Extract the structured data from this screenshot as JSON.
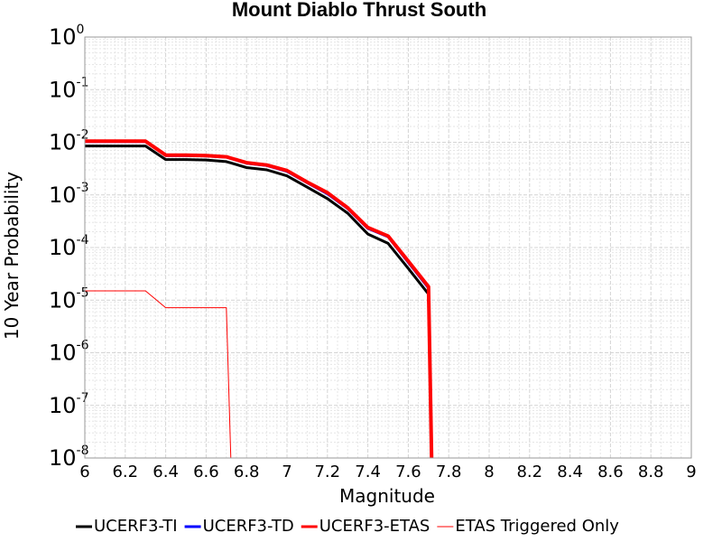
{
  "chart_data": {
    "type": "line",
    "title": "Mount Diablo Thrust South",
    "xlabel": "Magnitude",
    "ylabel": "10 Year Probability",
    "xlim": [
      6,
      9
    ],
    "ylim": [
      1e-08,
      1
    ],
    "yscale": "log",
    "grid": true,
    "legend_position": "bottom",
    "x_ticks": [
      "6",
      "6.2",
      "6.4",
      "6.6",
      "6.8",
      "7",
      "7.2",
      "7.4",
      "7.6",
      "7.8",
      "8",
      "8.2",
      "8.4",
      "8.6",
      "8.8",
      "9"
    ],
    "y_ticks": [
      {
        "base": "10",
        "exp": "0"
      },
      {
        "base": "10",
        "exp": "-1"
      },
      {
        "base": "10",
        "exp": "-2"
      },
      {
        "base": "10",
        "exp": "-3"
      },
      {
        "base": "10",
        "exp": "-4"
      },
      {
        "base": "10",
        "exp": "-5"
      },
      {
        "base": "10",
        "exp": "-6"
      },
      {
        "base": "10",
        "exp": "-7"
      },
      {
        "base": "10",
        "exp": "-8"
      }
    ],
    "series": [
      {
        "name": "UCERF3-TI",
        "color": "#000000",
        "width": 3,
        "x": [
          6.0,
          6.3,
          6.4,
          6.5,
          6.6,
          6.7,
          6.8,
          6.9,
          7.0,
          7.1,
          7.2,
          7.3,
          7.4,
          7.5,
          7.6,
          7.7,
          7.72
        ],
        "y": [
          0.0085,
          0.0085,
          0.0047,
          0.0047,
          0.0046,
          0.0043,
          0.0033,
          0.003,
          0.0023,
          0.0014,
          0.00085,
          0.00045,
          0.00018,
          0.00012,
          4e-05,
          1.3e-05,
          1e-09
        ]
      },
      {
        "name": "UCERF3-TD",
        "color": "#0000ff",
        "width": 3,
        "x": [
          6.0,
          6.3,
          6.4,
          6.5,
          6.6,
          6.7,
          6.8,
          6.9,
          7.0,
          7.1,
          7.2,
          7.3,
          7.4,
          7.5,
          7.6,
          7.7,
          7.72
        ],
        "y": [
          0.0103,
          0.0103,
          0.0056,
          0.0056,
          0.0055,
          0.0052,
          0.004,
          0.0036,
          0.0028,
          0.0017,
          0.00105,
          0.00055,
          0.00023,
          0.00016,
          5.2e-05,
          1.7e-05,
          1e-09
        ]
      },
      {
        "name": "UCERF3-ETAS",
        "color": "#ff0000",
        "width": 4,
        "x": [
          6.0,
          6.3,
          6.4,
          6.5,
          6.6,
          6.7,
          6.8,
          6.9,
          7.0,
          7.1,
          7.2,
          7.3,
          7.4,
          7.5,
          7.6,
          7.7,
          7.72
        ],
        "y": [
          0.0105,
          0.0105,
          0.0057,
          0.0057,
          0.0056,
          0.0053,
          0.0041,
          0.0037,
          0.0029,
          0.00175,
          0.0011,
          0.00057,
          0.00024,
          0.000165,
          5.5e-05,
          1.8e-05,
          1e-09
        ]
      },
      {
        "name": "ETAS Triggered Only",
        "color": "#ff0000",
        "width": 1,
        "x": [
          6.0,
          6.3,
          6.4,
          6.5,
          6.6,
          6.7,
          6.73
        ],
        "y": [
          1.5e-05,
          1.5e-05,
          7.2e-06,
          7.2e-06,
          7.2e-06,
          7.2e-06,
          1e-09
        ]
      }
    ]
  }
}
